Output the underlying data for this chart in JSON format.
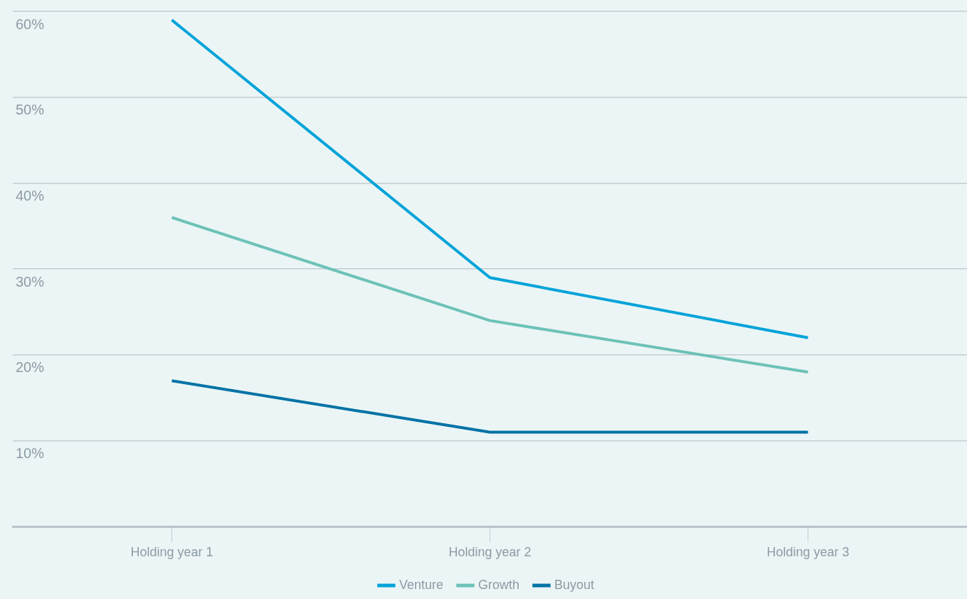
{
  "chart_data": {
    "type": "line",
    "categories": [
      "Holding year 1",
      "Holding year 2",
      "Holding year 3"
    ],
    "series": [
      {
        "name": "Venture",
        "color": "#00a3d9",
        "values": [
          59,
          29,
          22
        ]
      },
      {
        "name": "Growth",
        "color": "#6cc2b8",
        "values": [
          36,
          24,
          18
        ]
      },
      {
        "name": "Buyout",
        "color": "#0072a6",
        "values": [
          17,
          11,
          11
        ]
      }
    ],
    "ylim": [
      0,
      60
    ],
    "yticks": [
      {
        "value": 0,
        "label": null
      },
      {
        "value": 10,
        "label": "10%"
      },
      {
        "value": 20,
        "label": "20%"
      },
      {
        "value": 30,
        "label": "30%"
      },
      {
        "value": 40,
        "label": "40%"
      },
      {
        "value": 50,
        "label": "50%"
      },
      {
        "value": 60,
        "label": "60%"
      }
    ],
    "grid": "y",
    "legend": "bottom",
    "marker": "none",
    "line_style": "solid"
  }
}
